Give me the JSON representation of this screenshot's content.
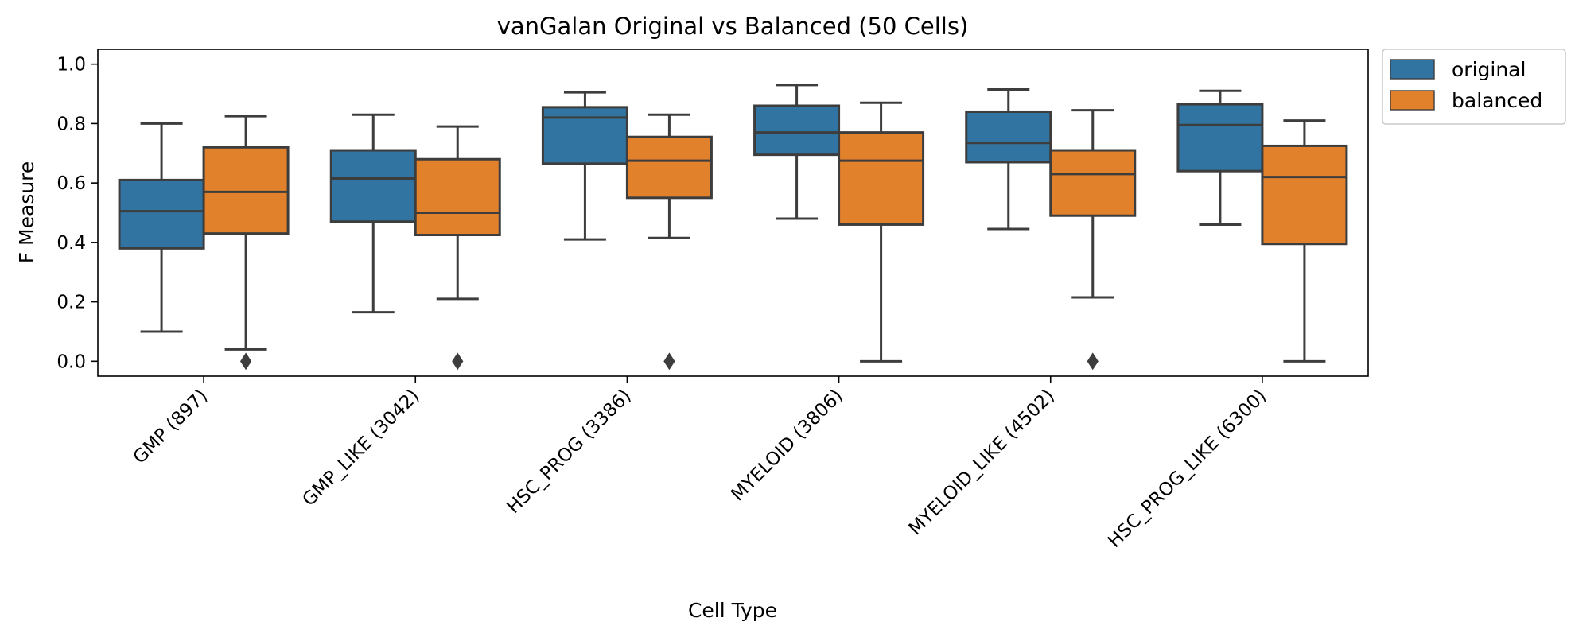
{
  "chart_data": {
    "type": "box",
    "title": "vanGalan Original vs Balanced (50 Cells)",
    "xlabel": "Cell Type",
    "ylabel": "F Measure",
    "ylim": [
      -0.05,
      1.05
    ],
    "yticks": [
      0.0,
      0.2,
      0.4,
      0.6,
      0.8,
      1.0
    ],
    "ytick_labels": [
      "0.0",
      "0.2",
      "0.4",
      "0.6",
      "0.8",
      "1.0"
    ],
    "grid": false,
    "legend_position": "outside-top-right",
    "categories": [
      "GMP (897)",
      "GMP_LIKE (3042)",
      "HSC_PROG (3386)",
      "MYELOID (3806)",
      "MYELOID_LIKE (4502)",
      "HSC_PROG_LIKE (6300)"
    ],
    "series": [
      {
        "name": "original",
        "color": "#3274a1",
        "boxes": [
          {
            "whisker_low": 0.1,
            "q1": 0.38,
            "median": 0.505,
            "q3": 0.61,
            "whisker_high": 0.8,
            "outliers": []
          },
          {
            "whisker_low": 0.165,
            "q1": 0.47,
            "median": 0.615,
            "q3": 0.71,
            "whisker_high": 0.83,
            "outliers": []
          },
          {
            "whisker_low": 0.41,
            "q1": 0.665,
            "median": 0.82,
            "q3": 0.855,
            "whisker_high": 0.905,
            "outliers": []
          },
          {
            "whisker_low": 0.48,
            "q1": 0.695,
            "median": 0.77,
            "q3": 0.86,
            "whisker_high": 0.93,
            "outliers": []
          },
          {
            "whisker_low": 0.445,
            "q1": 0.67,
            "median": 0.735,
            "q3": 0.84,
            "whisker_high": 0.915,
            "outliers": []
          },
          {
            "whisker_low": 0.46,
            "q1": 0.64,
            "median": 0.795,
            "q3": 0.865,
            "whisker_high": 0.91,
            "outliers": []
          }
        ]
      },
      {
        "name": "balanced",
        "color": "#e1812c",
        "boxes": [
          {
            "whisker_low": 0.04,
            "q1": 0.43,
            "median": 0.57,
            "q3": 0.72,
            "whisker_high": 0.825,
            "outliers": [
              0.0
            ]
          },
          {
            "whisker_low": 0.21,
            "q1": 0.425,
            "median": 0.5,
            "q3": 0.68,
            "whisker_high": 0.79,
            "outliers": [
              0.0
            ]
          },
          {
            "whisker_low": 0.415,
            "q1": 0.55,
            "median": 0.675,
            "q3": 0.755,
            "whisker_high": 0.83,
            "outliers": [
              0.0
            ]
          },
          {
            "whisker_low": 0.0,
            "q1": 0.46,
            "median": 0.675,
            "q3": 0.77,
            "whisker_high": 0.87,
            "outliers": []
          },
          {
            "whisker_low": 0.215,
            "q1": 0.49,
            "median": 0.63,
            "q3": 0.71,
            "whisker_high": 0.845,
            "outliers": [
              0.0
            ]
          },
          {
            "whisker_low": 0.0,
            "q1": 0.395,
            "median": 0.62,
            "q3": 0.725,
            "whisker_high": 0.81,
            "outliers": []
          }
        ]
      }
    ]
  }
}
